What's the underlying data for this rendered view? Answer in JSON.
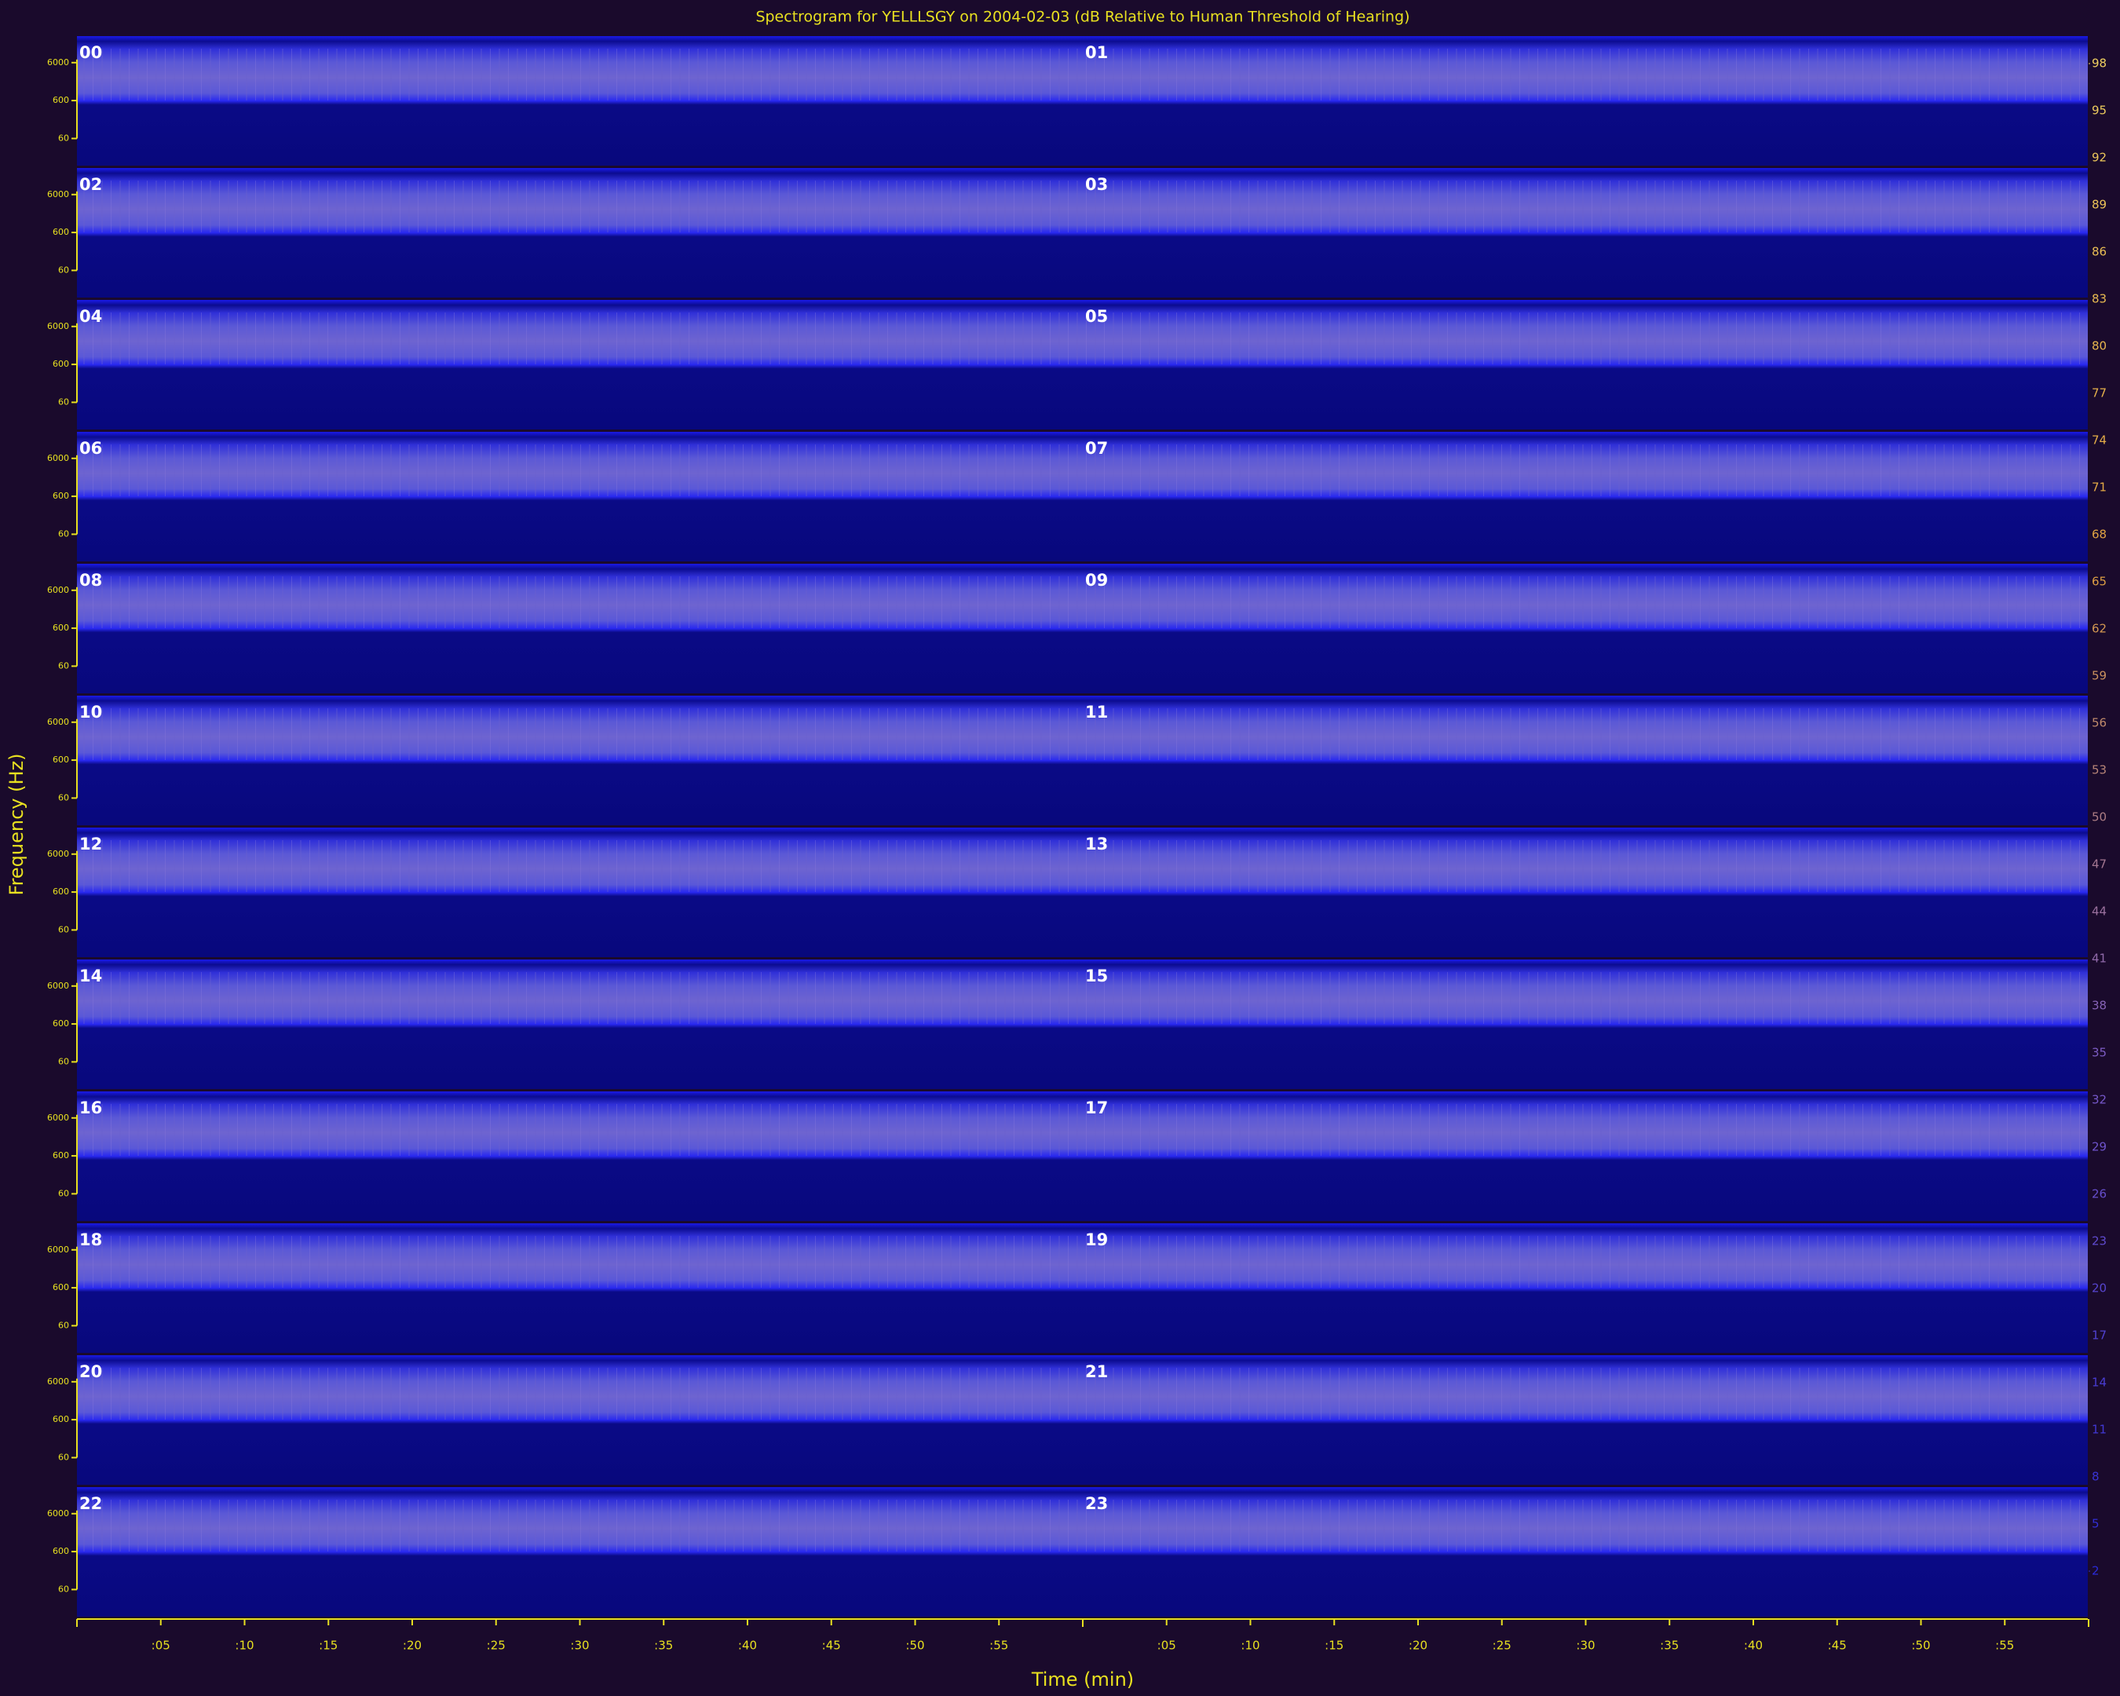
{
  "chart_data": {
    "type": "spectrogram",
    "title": "Spectrogram for YELLLSGY on 2004-02-03 (dB Relative to Human Threshold of Hearing)",
    "x_label": "Time (min)",
    "y_label": "Frequency (Hz)",
    "rows": [
      "00",
      "01",
      "02",
      "03",
      "04",
      "05",
      "06",
      "07",
      "08",
      "09",
      "10",
      "11",
      "12",
      "13",
      "14",
      "15",
      "16",
      "17",
      "18",
      "19",
      "20",
      "21",
      "22",
      "23"
    ],
    "xlim": [
      0,
      60
    ],
    "xticks": [
      {
        "value": 5,
        "label": ":05"
      },
      {
        "value": 10,
        "label": ":10"
      },
      {
        "value": 15,
        "label": ":15"
      },
      {
        "value": 20,
        "label": ":20"
      },
      {
        "value": 25,
        "label": ":25"
      },
      {
        "value": 30,
        "label": ":30"
      },
      {
        "value": 35,
        "label": ":35"
      },
      {
        "value": 40,
        "label": ":40"
      },
      {
        "value": 45,
        "label": ":45"
      },
      {
        "value": 50,
        "label": ":50"
      },
      {
        "value": 55,
        "label": ":55"
      }
    ],
    "y_log": true,
    "ylim": [
      10,
      30000
    ],
    "yticks": [
      6000,
      600,
      60
    ],
    "colorbar": {
      "lim": [
        2,
        98
      ],
      "ticks": [
        98,
        95,
        92,
        89,
        86,
        83,
        80,
        77,
        74,
        71,
        68,
        65,
        62,
        59,
        56,
        53,
        50,
        47,
        44,
        41,
        38,
        35,
        32,
        29,
        26,
        23,
        20,
        17,
        14,
        11,
        8,
        5,
        2
      ],
      "colors": [
        "#2a2ad8",
        "#7a5ac8",
        "#e0a040",
        "#f0d060"
      ]
    },
    "axis_color": "#e8e020"
  }
}
